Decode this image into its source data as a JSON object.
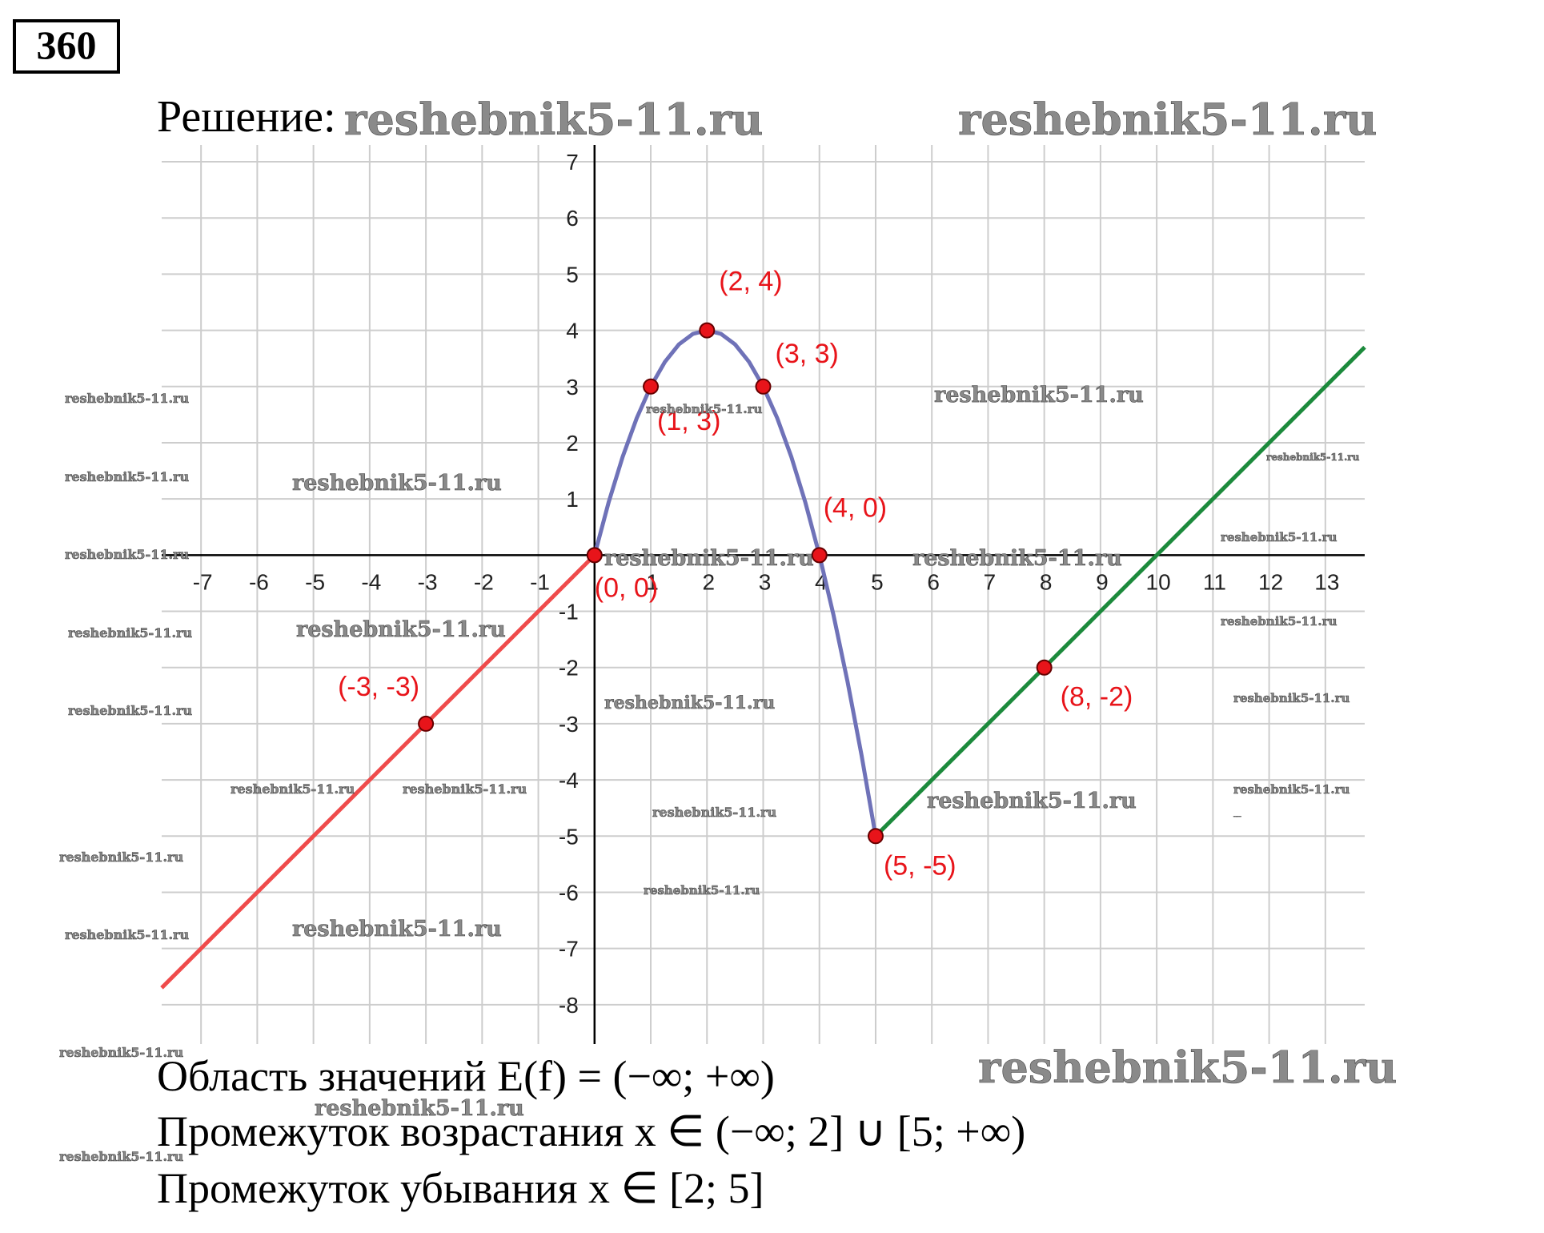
{
  "number": "360",
  "solution_label": "Решение:",
  "chart_data": {
    "type": "line",
    "xlim": [
      -7.7,
      13.7
    ],
    "ylim": [
      -8.7,
      7.3
    ],
    "xticks": [
      -7,
      -6,
      -5,
      -4,
      -3,
      -2,
      -1,
      1,
      2,
      3,
      4,
      5,
      6,
      7,
      8,
      9,
      10,
      11,
      12,
      13
    ],
    "yticks": [
      -8,
      -7,
      -6,
      -5,
      -4,
      -3,
      -2,
      -1,
      1,
      2,
      3,
      4,
      5,
      6,
      7
    ],
    "grid": true,
    "series": [
      {
        "color": "#ef4b4b",
        "x": [
          -7.7,
          0
        ],
        "values": [
          -7.7,
          0
        ]
      },
      {
        "color": "#6f72b8",
        "x": [
          0,
          0.25,
          0.5,
          0.75,
          1,
          1.25,
          1.5,
          1.75,
          2,
          2.25,
          2.5,
          2.75,
          3,
          3.25,
          3.5,
          3.75,
          4,
          4.25,
          4.5,
          4.75,
          5
        ],
        "values": [
          0,
          0.9375,
          1.75,
          2.4375,
          3,
          3.4375,
          3.75,
          3.9375,
          4,
          3.9375,
          3.75,
          3.4375,
          3,
          2.4375,
          1.75,
          0.9375,
          0,
          -1.0625,
          -2.25,
          -3.5625,
          -5
        ]
      },
      {
        "color": "#1c8a3c",
        "x": [
          5,
          13.7
        ],
        "values": [
          -5,
          3.7
        ]
      }
    ],
    "points": {
      "color": "#e8141a",
      "x": [
        0,
        1,
        2,
        3,
        4,
        5,
        8,
        -3
      ],
      "values": [
        0,
        3,
        4,
        3,
        0,
        -5,
        -2,
        -3
      ],
      "labels": [
        "(0, 0)",
        "(1, 3)",
        "(2, 4)",
        "(3, 3)",
        "(4, 0)",
        "(5, -5)",
        "(8, -2)",
        "(-3, -3)"
      ]
    }
  },
  "answers": [
    "Область значений E(f) = (−∞; +∞)",
    "Промежуток возрастания x ∈ (−∞; 2] ∪ [5; +∞)",
    "Промежуток убывания x ∈ [2; 5]"
  ],
  "watermarks": [
    "reshebnik5-11.ru",
    "reshebnik5-11.ru",
    "reshebnik5-11.ru",
    "reshebnik5-11.ru",
    "reshebnik5-11.ru",
    "reshebnik5-11.ru",
    "reshebnik5-11.ru",
    "reshebnik5-11.ru",
    "reshebnik5-11.ru",
    "reshebnik5-11.ru",
    "reshebnik5-11.ru",
    "reshebnik5-11.ru",
    "reshebnik5-11.ru",
    "reshebnik5-11.ru",
    "reshebnik5-11.ru",
    "reshebnik5-11.ru",
    "reshebnik5-11.ru",
    "reshebnik5-11.ru",
    "reshebnik5-11.ru",
    "reshebnik5-11.ru",
    "reshebnik5-11.ru",
    "reshebnik5-11.ru",
    "reshebnik5-11.ru",
    "reshebnik5-11.ru",
    "reshebnik5-11.ru",
    "reshebnik5-11.ru",
    "reshebnik5-11.ru",
    "reshebnik5-11.ru",
    "reshebnik5-11.ru",
    "reshebnik5-11.ru",
    "reshebnik5-11.ru",
    "reshebnik5-11.ru"
  ]
}
